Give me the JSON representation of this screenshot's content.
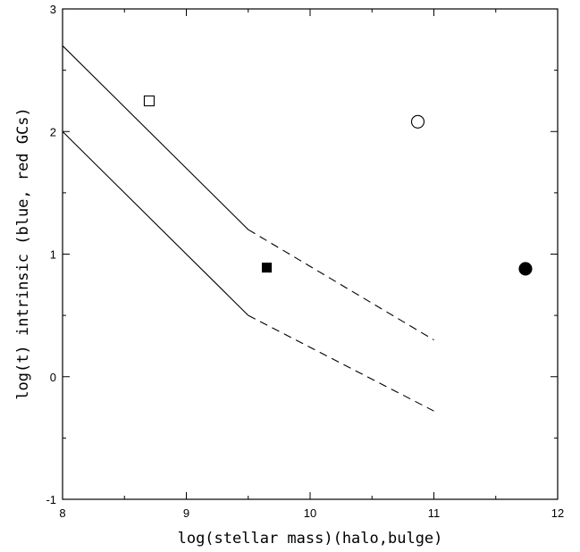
{
  "chart_data": {
    "type": "scatter",
    "title": "",
    "xlabel": "log(stellar mass)(halo,bulge)",
    "ylabel": "log(t) intrinsic (blue, red GCs)",
    "xlim": [
      8,
      12
    ],
    "ylim": [
      -1,
      3
    ],
    "xticks": [
      8,
      9,
      10,
      11,
      12
    ],
    "yticks": [
      -1,
      0,
      1,
      2,
      3
    ],
    "xtick_labels": [
      "8",
      "9",
      "10",
      "11",
      "12"
    ],
    "ytick_labels": [
      "-1",
      "0",
      "1",
      "2",
      "3"
    ],
    "grid": false,
    "points": [
      {
        "x": 8.7,
        "y": 2.25,
        "marker": "square",
        "filled": false
      },
      {
        "x": 9.65,
        "y": 0.89,
        "marker": "square",
        "filled": true
      },
      {
        "x": 10.87,
        "y": 2.08,
        "marker": "circle",
        "filled": false
      },
      {
        "x": 11.74,
        "y": 0.88,
        "marker": "circle",
        "filled": true
      }
    ],
    "lines": [
      {
        "style": "solid",
        "x": [
          8,
          9.5
        ],
        "y": [
          2.7,
          1.2
        ]
      },
      {
        "style": "dashed",
        "x": [
          9.5,
          11
        ],
        "y": [
          1.2,
          0.3
        ]
      },
      {
        "style": "solid",
        "x": [
          8,
          9.5
        ],
        "y": [
          2.0,
          0.5
        ]
      },
      {
        "style": "dashed",
        "x": [
          9.5,
          11
        ],
        "y": [
          0.5,
          -0.28
        ]
      }
    ]
  }
}
